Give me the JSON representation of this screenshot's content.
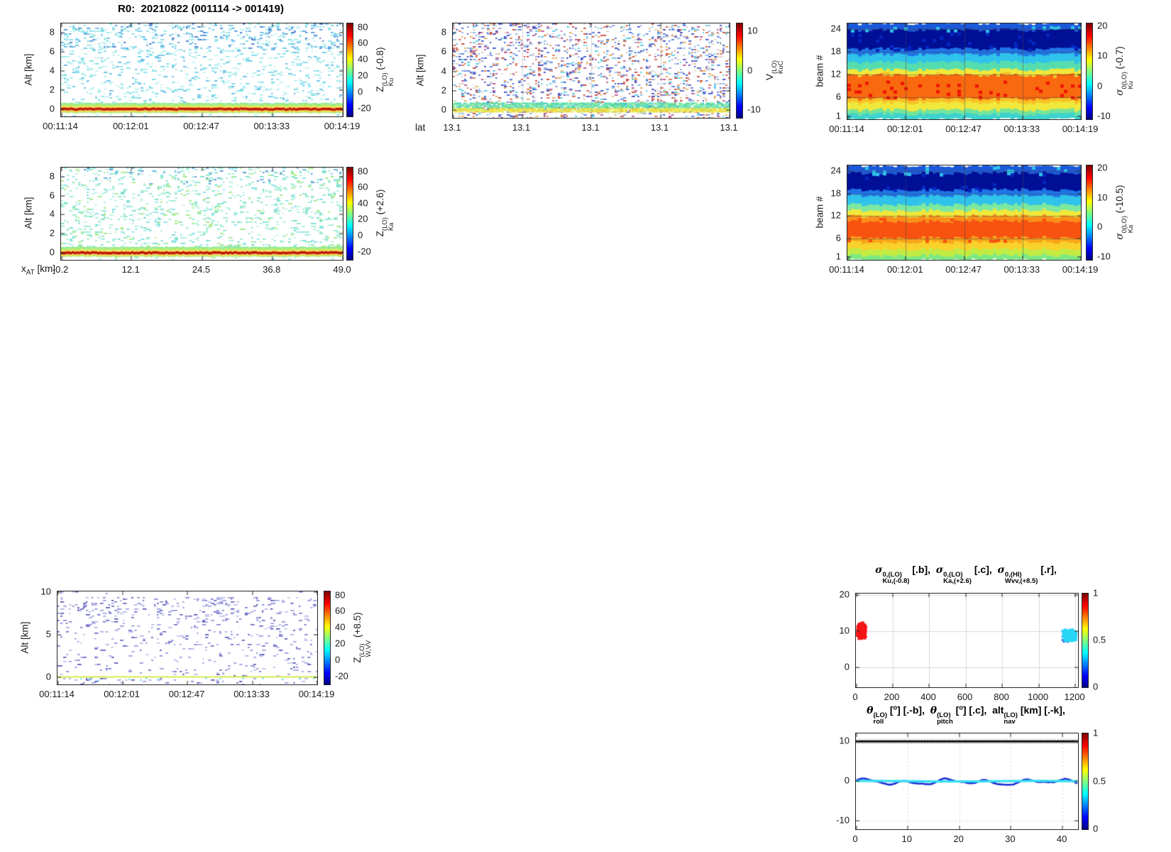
{
  "figure": {
    "background": "#ffffff"
  },
  "chart_data": {
    "z_ku": {
      "type": "heatmap",
      "render": "z",
      "title": "R0:  20210822 (001114 -> 001419)",
      "ylabel": "Alt [km]",
      "x_ticks": [
        "00:11:14",
        "00:12:01",
        "00:12:47",
        "00:13:33",
        "00:14:19"
      ],
      "y_ticks": [
        "0",
        "2",
        "4",
        "6",
        "8"
      ],
      "y_tick_vals": [
        0,
        2,
        4,
        6,
        8
      ],
      "ylim": [
        -0.78,
        8.97
      ],
      "cb": {
        "ticks": [
          "80",
          "60",
          "40",
          "20",
          "0",
          "-20"
        ],
        "tick_vals": [
          80,
          60,
          40,
          20,
          0,
          -20
        ],
        "lim": [
          -30,
          85
        ],
        "label": {
          "base": "Z",
          "sup": "(LO)",
          "sub": "Ku",
          "rest": " (-0.8)"
        }
      },
      "speckle": {
        "density": 0.16,
        "colors": [
          "#93e7e7",
          "#aeeded",
          "#6cd6e4",
          "#5ab8e4",
          "#c4f1ef",
          "#7fdeea"
        ],
        "top_alt": 6.3,
        "top_boost": 1.6,
        "top_colors": [
          "#4a90da",
          "#3b74ce",
          "#62b9e8"
        ],
        "below_factor": 0.8
      },
      "surface": {
        "top": 0.62,
        "bottom": -0.42,
        "jitter": 0.1,
        "bands": [
          [
            -0.42,
            -0.3,
            "#a8e86c"
          ],
          [
            -0.3,
            -0.22,
            "#e6e83c"
          ],
          [
            -0.22,
            -0.13,
            "#f89c28"
          ],
          [
            -0.13,
            0.12,
            "#b91104"
          ],
          [
            0.12,
            0.2,
            "#f89c28"
          ],
          [
            0.2,
            0.3,
            "#e6e83c"
          ],
          [
            0.3,
            0.45,
            "#b4ec64"
          ],
          [
            0.45,
            0.62,
            "#8fe88f"
          ]
        ]
      }
    },
    "v_kuc": {
      "type": "heatmap",
      "render": "v",
      "ylabel": "Alt [km]",
      "xlabel_side": "lat",
      "x_ticks": [
        "13.1",
        "13.1",
        "13.1",
        "13.1",
        "13.1"
      ],
      "y_ticks": [
        "0",
        "2",
        "4",
        "6",
        "8"
      ],
      "y_tick_vals": [
        0,
        2,
        4,
        6,
        8
      ],
      "ylim": [
        -0.8,
        8.95
      ],
      "cb": {
        "ticks": [
          "10",
          "0",
          "-10"
        ],
        "tick_vals": [
          10,
          0,
          -10
        ],
        "lim": [
          -12,
          12
        ],
        "label": {
          "base": "V",
          "sup": "(LO)",
          "sub": "KuC",
          "rest": ""
        }
      },
      "speckle": {
        "density": 0.23,
        "colors": [
          "#c23b2a",
          "#d4684a",
          "#2b49c8",
          "#4a74dc",
          "#7fb2e8",
          "#46c8e0",
          "#8f9fd8",
          "#e2a04a",
          "#3a3ab0",
          "#d9cfc6",
          "#b04a86"
        ]
      },
      "dense_bands": [
        {
          "lo": 0.2,
          "hi": 0.78,
          "density": 0.92,
          "colors": [
            "#5fe0a8",
            "#4ad890",
            "#7ce8c0",
            "#40d0c0",
            "#90eca0"
          ]
        },
        {
          "lo": -0.22,
          "hi": 0.2,
          "density": 0.95,
          "colors": [
            "#f2e43a",
            "#e8da2e",
            "#cce858",
            "#f2ee6a",
            "#e0c830"
          ]
        }
      ],
      "grid": {
        "vfrac": [
          0.25,
          0.5,
          0.75
        ],
        "color": "rgba(170,170,170,0.5)"
      }
    },
    "sigma_ku_beam": {
      "type": "heatmap",
      "render": "beam",
      "ylabel": "beam #",
      "x_ticks": [
        "00:11:14",
        "00:12:01",
        "00:12:47",
        "00:13:33",
        "00:14:19"
      ],
      "y_ticks": [
        "1",
        "6",
        "12",
        "18",
        "24"
      ],
      "y_tick_vals": [
        1,
        6,
        12,
        18,
        24
      ],
      "ylim": [
        0.25,
        25.56
      ],
      "cb": {
        "ticks": [
          "20",
          "10",
          "0",
          "-10"
        ],
        "tick_vals": [
          20,
          10,
          0,
          -10
        ],
        "lim": [
          -11,
          21
        ],
        "label": {
          "base": "σ",
          "sup": "0(LO)",
          "sub": "Ku",
          "rest": " (-0.7)"
        }
      },
      "bands": [
        [
          0.25,
          1.7,
          "#3ed2cd"
        ],
        [
          1.7,
          2.8,
          "#74e49a"
        ],
        [
          2.8,
          4.7,
          "#f0e83a"
        ],
        [
          4.7,
          5.7,
          "#f8c226"
        ],
        [
          5.7,
          12.0,
          "#f9690f"
        ],
        [
          12.0,
          13.4,
          "#f0e83a"
        ],
        [
          13.4,
          15.4,
          "#55ddb0"
        ],
        [
          15.4,
          17.4,
          "#2fc2ea"
        ],
        [
          17.4,
          18.9,
          "#1f74e8"
        ],
        [
          18.9,
          23.9,
          "#000f96"
        ],
        [
          23.9,
          25.56,
          "#1b59d8"
        ]
      ],
      "speckles": [
        {
          "range": [
            6.3,
            10.9
          ],
          "color": "#ee1505",
          "density": 0.1
        },
        {
          "range": [
            12.0,
            13.2
          ],
          "color": "#f8c226",
          "density": 0.05
        },
        {
          "range": [
            23.9,
            25.4
          ],
          "color": "#2fc2ea",
          "density": 0.1
        },
        {
          "range": [
            19.0,
            23.5
          ],
          "color": "#0626c0",
          "density": 0.06
        }
      ],
      "grid": {
        "hy": [
          6,
          12,
          18,
          24
        ],
        "vfrac": [
          0.25,
          0.5,
          0.75
        ],
        "color": "rgba(70,70,70,0.5)"
      }
    },
    "z_ka": {
      "type": "heatmap",
      "render": "z",
      "ylabel": "Alt [km]",
      "xlabel_parts": {
        "base": "x",
        "sub": "AT",
        "rest": " [km]"
      },
      "x_ticks": [
        "-0.2",
        "12.1",
        "24.5",
        "36.8",
        "49.0"
      ],
      "y_ticks": [
        "0",
        "2",
        "4",
        "6",
        "8"
      ],
      "y_tick_vals": [
        0,
        2,
        4,
        6,
        8
      ],
      "ylim": [
        -0.75,
        8.95
      ],
      "cb": {
        "ticks": [
          "80",
          "60",
          "40",
          "20",
          "0",
          "-20"
        ],
        "tick_vals": [
          80,
          60,
          40,
          20,
          0,
          -20
        ],
        "lim": [
          -30,
          85
        ],
        "label": {
          "base": "Z",
          "sup": "(LO)",
          "sub": "Ka",
          "rest": " (+2.6)"
        }
      },
      "speckle": {
        "density": 0.18,
        "colors": [
          "#92e8d2",
          "#a4ecd6",
          "#84e4bc",
          "#6cdaca",
          "#b6f0de",
          "#7adee6",
          "#9ce87e"
        ],
        "top_alt": 7.2,
        "top_boost": 1.2,
        "top_colors": [
          "#58ace0",
          "#4c88d6"
        ],
        "below_factor": 0.7
      },
      "surface": {
        "top": 0.62,
        "bottom": -0.42,
        "jitter": 0.1,
        "bands": [
          [
            -0.42,
            -0.3,
            "#a8e86c"
          ],
          [
            -0.3,
            -0.22,
            "#e6e83c"
          ],
          [
            -0.22,
            -0.13,
            "#f89c28"
          ],
          [
            -0.13,
            0.12,
            "#b91104"
          ],
          [
            0.12,
            0.2,
            "#f89c28"
          ],
          [
            0.2,
            0.3,
            "#e6e83c"
          ],
          [
            0.3,
            0.45,
            "#b4ec64"
          ],
          [
            0.45,
            0.62,
            "#8fe88f"
          ]
        ]
      }
    },
    "sigma_ka_beam": {
      "type": "heatmap",
      "render": "beam",
      "ylabel": "beam #",
      "x_ticks": [
        "00:11:14",
        "00:12:01",
        "00:12:47",
        "00:13:33",
        "00:14:19"
      ],
      "y_ticks": [
        "1",
        "6",
        "12",
        "18",
        "24"
      ],
      "y_tick_vals": [
        1,
        6,
        12,
        18,
        24
      ],
      "ylim": [
        0.25,
        25.56
      ],
      "cb": {
        "ticks": [
          "20",
          "10",
          "0",
          "-10"
        ],
        "tick_vals": [
          20,
          10,
          0,
          -10
        ],
        "lim": [
          -11,
          21
        ],
        "label": {
          "base": "σ",
          "sup": "0(LO)",
          "sub": "Ka",
          "rest": " (-10.5)"
        }
      },
      "bands": [
        [
          0.25,
          1.6,
          "#7ce884"
        ],
        [
          1.6,
          3.2,
          "#c2ec44"
        ],
        [
          3.2,
          5.1,
          "#f8d22a"
        ],
        [
          5.1,
          6.3,
          "#f9a41a"
        ],
        [
          6.3,
          10.7,
          "#f85210"
        ],
        [
          10.7,
          12.1,
          "#f9911a"
        ],
        [
          12.1,
          13.6,
          "#f0e83a"
        ],
        [
          13.6,
          15.2,
          "#7ce8a0"
        ],
        [
          15.2,
          17.6,
          "#2fc2ea"
        ],
        [
          17.6,
          19.1,
          "#1f74e8"
        ],
        [
          19.1,
          23.6,
          "#000f96"
        ],
        [
          23.6,
          25.56,
          "#1b59d8"
        ]
      ],
      "speckles": [
        {
          "range": [
            5.8,
            6.5
          ],
          "color": "#f85210",
          "density": 0.12
        },
        {
          "range": [
            10.7,
            12.3
          ],
          "color": "#f85210",
          "density": 0.08
        },
        {
          "range": [
            23.6,
            25.4
          ],
          "color": "#2fc2ea",
          "density": 0.08
        },
        {
          "range": [
            19.2,
            23.4
          ],
          "color": "#0626c0",
          "density": 0.05
        }
      ],
      "grid": {
        "hy": [
          6,
          12,
          18,
          24
        ],
        "vfrac": [
          0.25,
          0.5,
          0.75
        ],
        "color": "rgba(70,70,70,0.5)"
      }
    },
    "z_w": {
      "type": "heatmap",
      "render": "w",
      "ylabel": "Alt [km]",
      "x_ticks": [
        "00:11:14",
        "00:12:01",
        "00:12:47",
        "00:13:33",
        "00:14:19"
      ],
      "y_ticks": [
        "0",
        "5",
        "10"
      ],
      "y_tick_vals": [
        0,
        5,
        10
      ],
      "ylim": [
        -0.87,
        10.09
      ],
      "cb": {
        "ticks": [
          "80",
          "60",
          "40",
          "20",
          "0",
          "-20"
        ],
        "tick_vals": [
          80,
          60,
          40,
          20,
          0,
          -20
        ],
        "lim": [
          -30,
          85
        ],
        "label": {
          "base": "Z",
          "sup": "(LO)",
          "sub": "W,VV",
          "rest": " (+8.5)"
        }
      },
      "speckle": {
        "colors": [
          "#7d7dd2",
          "#9b9be0",
          "#5d5dc4",
          "#b8b8ea",
          "#4646b0",
          "#8f8fd8",
          "#aaaae4"
        ]
      },
      "surface_line": {
        "color": "#d8e84e",
        "lo": -0.04,
        "hi": 0.1,
        "fleck_color": "#5fd8e8",
        "fleck_range": [
          -0.35,
          -0.05
        ],
        "fleck_density": 0.18
      }
    },
    "sigma_scatter": {
      "type": "scatter",
      "title_terms": [
        {
          "base": "σ",
          "sup": "0,(LO)",
          "sub": "Ku,(-0.8)",
          "rest1": " [.b],  ",
          "sup2": "",
          "rest2": ""
        },
        {
          "base": "σ",
          "sup": "0,(LO)",
          "sub": "Ka,(+2.6)",
          "rest1": " [.c],  ",
          "sup2": "",
          "rest2": ""
        },
        {
          "base": "σ",
          "sup": "0,(HI)",
          "sub": "Wvv,(+8.5)",
          "rest1": " [.r],",
          "sup2": "",
          "rest2": ""
        }
      ],
      "x_ticks": [
        "0",
        "200",
        "400",
        "600",
        "800",
        "1000",
        "1200"
      ],
      "x_tick_vals": [
        0,
        200,
        400,
        600,
        800,
        1000,
        1200
      ],
      "xlim": [
        0,
        1215
      ],
      "y_ticks": [
        "0",
        "10",
        "20"
      ],
      "y_tick_vals": [
        0,
        10,
        20
      ],
      "ylim": [
        -5.6,
        20.4
      ],
      "cb": {
        "ticks": [
          "1",
          "0.5",
          "0"
        ],
        "tick_vals": [
          1,
          0.5,
          0
        ],
        "lim": [
          0,
          1
        ]
      },
      "grid": {
        "color": "#d9d9d9"
      },
      "clusters": [
        {
          "series": "Ku (.b)",
          "color": "#1f3bd4",
          "x": [
            1122,
            1212
          ],
          "y": [
            6.6,
            10.8
          ],
          "n": 30,
          "size": 2.6
        },
        {
          "series": "Ka (.c)",
          "color": "#28d6f5",
          "x": [
            1128,
            1210
          ],
          "y": [
            6.9,
            10.5
          ],
          "n": 380,
          "size": 2.8
        },
        {
          "series": "Wvv (.r)",
          "color": "#f51515",
          "x": [
            4,
            60
          ],
          "y": [
            7.6,
            12.5
          ],
          "n": 420,
          "size": 2.8
        }
      ]
    },
    "attitude": {
      "type": "lines",
      "title_terms": [
        {
          "base": "θ",
          "sup": "(LO)",
          "sub": "roll",
          "rest1": " [",
          "sup2": "o",
          "rest2": "] [.-b],  "
        },
        {
          "base": "θ",
          "sup": "(LO)",
          "sub": "pitch",
          "rest1": " [",
          "sup2": "o",
          "rest2": "] [.c],  "
        },
        {
          "base": "alt",
          "sup": "(LO)",
          "sub": "nav",
          "rest1": " [km] [.-k],",
          "sup2": "",
          "rest2": ""
        }
      ],
      "x_ticks": [
        "0",
        "10",
        "20",
        "30",
        "40"
      ],
      "x_tick_vals": [
        0,
        10,
        20,
        30,
        40
      ],
      "xlim": [
        0,
        43
      ],
      "y_ticks": [
        "-10",
        "0",
        "10"
      ],
      "y_tick_vals": [
        -10,
        0,
        10
      ],
      "ylim": [
        -12.2,
        11.9
      ],
      "cb": {
        "ticks": [
          "1",
          "0.5",
          "0"
        ],
        "tick_vals": [
          1,
          0.5,
          0
        ],
        "lim": [
          0,
          1
        ]
      },
      "grid": {
        "color": "#d6d6d6"
      },
      "series": {
        "roll": {
          "color": "#1b2fd6",
          "base": -0.32,
          "width": 2.6
        },
        "pitch": {
          "color": "#35dff2",
          "base": -0.12,
          "amp": 0.07,
          "width": 3.2
        },
        "alt": {
          "color": "#000000",
          "y": 9.92,
          "underline": "#a9a9a9",
          "grid_dash_y": 10.45,
          "dot_r": 1.6,
          "spacing": 2.3
        }
      }
    }
  }
}
